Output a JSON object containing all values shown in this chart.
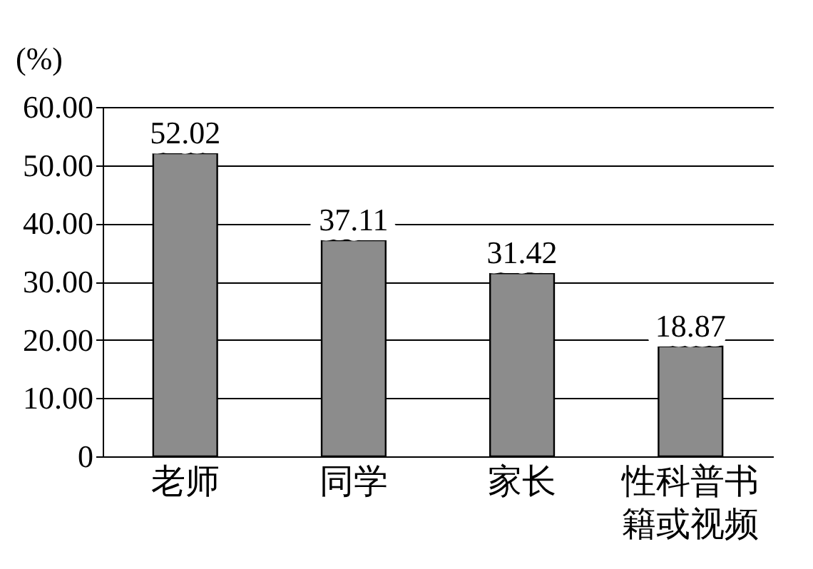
{
  "chart_data": {
    "type": "bar",
    "ylabel": "(%)",
    "categories": [
      "老师",
      "同学",
      "家长",
      "性科普书籍或视频"
    ],
    "values": [
      52.02,
      37.11,
      31.42,
      18.87
    ],
    "color": "#8c8c8c",
    "ylim": [
      0,
      60
    ],
    "yticks": [
      0,
      {
        "value": 10,
        "label": "10.00"
      },
      {
        "value": 20,
        "label": "20.00"
      },
      {
        "value": 30,
        "label": "30.00"
      },
      {
        "value": 40,
        "label": "40.00"
      },
      {
        "value": 50,
        "label": "50.00"
      },
      {
        "value": 60,
        "label": "60.00"
      }
    ],
    "grid": "y",
    "data_labels": true
  }
}
